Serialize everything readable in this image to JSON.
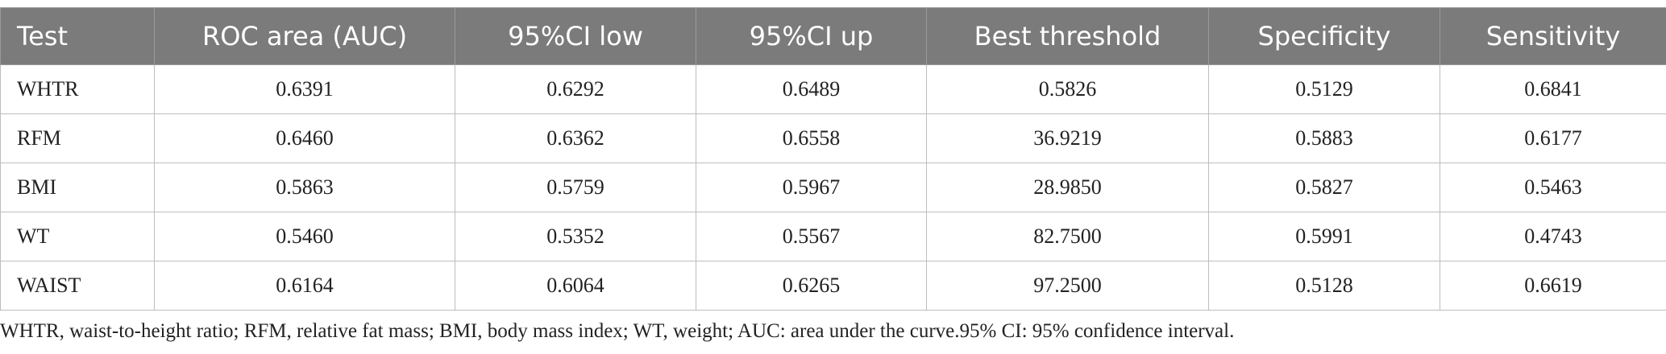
{
  "table": {
    "columns": [
      "Test",
      "ROC area (AUC)",
      "95%CI low",
      "95%CI up",
      "Best threshold",
      "Specificity",
      "Sensitivity"
    ],
    "rows": [
      [
        "WHTR",
        "0.6391",
        "0.6292",
        "0.6489",
        "0.5826",
        "0.5129",
        "0.6841"
      ],
      [
        "RFM",
        "0.6460",
        "0.6362",
        "0.6558",
        "36.9219",
        "0.5883",
        "0.6177"
      ],
      [
        "BMI",
        "0.5863",
        "0.5759",
        "0.5967",
        "28.9850",
        "0.5827",
        "0.5463"
      ],
      [
        "WT",
        "0.5460",
        "0.5352",
        "0.5567",
        "82.7500",
        "0.5991",
        "0.4743"
      ],
      [
        "WAIST",
        "0.6164",
        "0.6064",
        "0.6265",
        "97.2500",
        "0.5128",
        "0.6619"
      ]
    ]
  },
  "footnote": "WHTR, waist-to-height ratio; RFM, relative fat mass; BMI, body mass index; WT, weight; AUC: area under the curve.95% CI: 95% confidence interval."
}
